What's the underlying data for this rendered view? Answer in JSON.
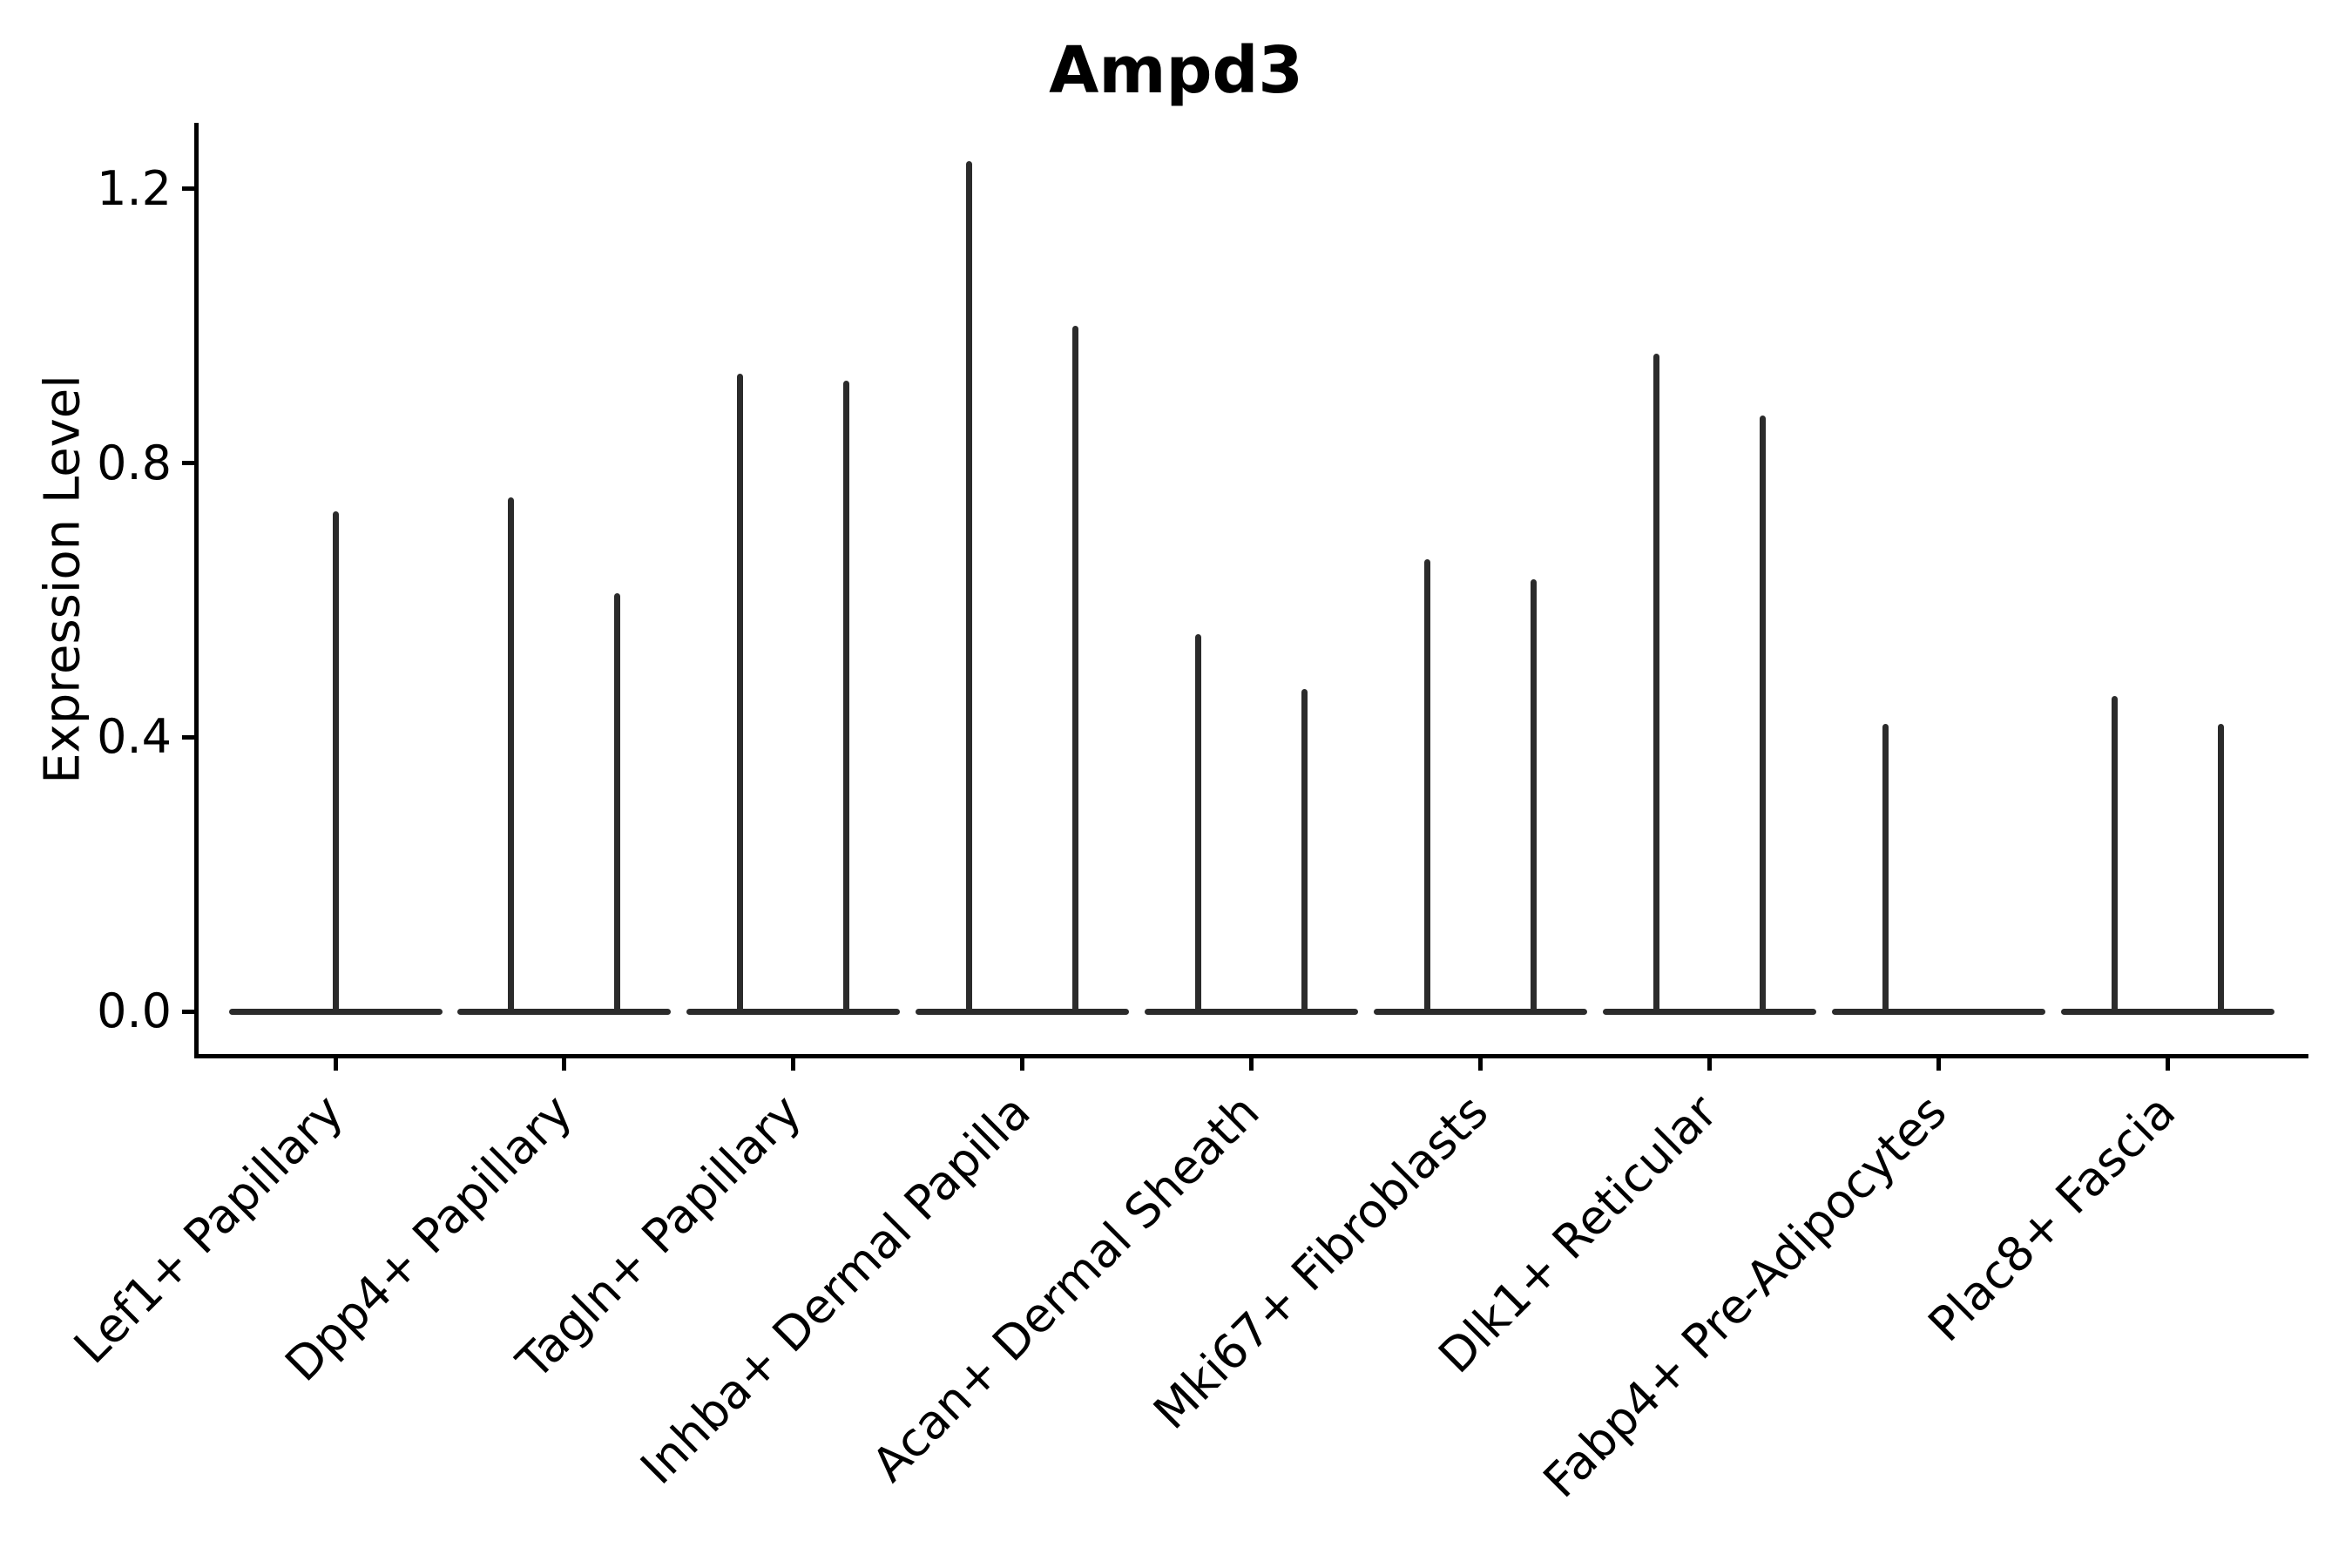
{
  "title": "Ampd3",
  "ylabel": "Expression Level",
  "chart_data": {
    "type": "violin",
    "title": "Ampd3",
    "xlabel": "",
    "ylabel": "Expression Level",
    "ylim": [
      -0.06,
      1.3
    ],
    "yticks": [
      0.0,
      0.4,
      0.8,
      1.2
    ],
    "ytick_labels": [
      "0.0",
      "0.4",
      "0.8",
      "1.2"
    ],
    "grid": false,
    "legend_position": "none",
    "line_color": "#2b2b2b",
    "axis_color": "#000000",
    "categories": [
      "Lef1+ Papillary",
      "Dpp4+ Papillary",
      "Tagln+ Papillary",
      "Inhba+ Dermal Papilla",
      "Acan+ Dermal Sheath",
      "Mki67+ Fibroblasts",
      "Dlk1+ Reticular",
      "Fabp4+ Pre-Adipocytes",
      "Plac8+ Fascia"
    ],
    "groups": [
      {
        "category": "Lef1+ Papillary",
        "violin_max_values": [
          0.73
        ]
      },
      {
        "category": "Dpp4+ Papillary",
        "violin_max_values": [
          0.75,
          0.61
        ]
      },
      {
        "category": "Tagln+ Papillary",
        "violin_max_values": [
          0.93,
          0.92
        ]
      },
      {
        "category": "Inhba+ Dermal Papilla",
        "violin_max_values": [
          1.24,
          1.0
        ]
      },
      {
        "category": "Acan+ Dermal Sheath",
        "violin_max_values": [
          0.55,
          0.47
        ]
      },
      {
        "category": "Mki67+ Fibroblasts",
        "violin_max_values": [
          0.66,
          0.63
        ]
      },
      {
        "category": "Dlk1+ Reticular",
        "violin_max_values": [
          0.96,
          0.87
        ]
      },
      {
        "category": "Fabp4+ Pre-Adipocytes",
        "violin_max_values": [
          0.42,
          0.0
        ]
      },
      {
        "category": "Plac8+ Fascia",
        "violin_max_values": [
          0.46,
          0.42
        ]
      }
    ],
    "description": "Violin plot of Ampd3 expression per fibroblast cell-type cluster; violins are collapsed to thin spikes (density concentrated at 0) rising from a flat baseline at expression 0 to each violin's maximum expression value."
  }
}
